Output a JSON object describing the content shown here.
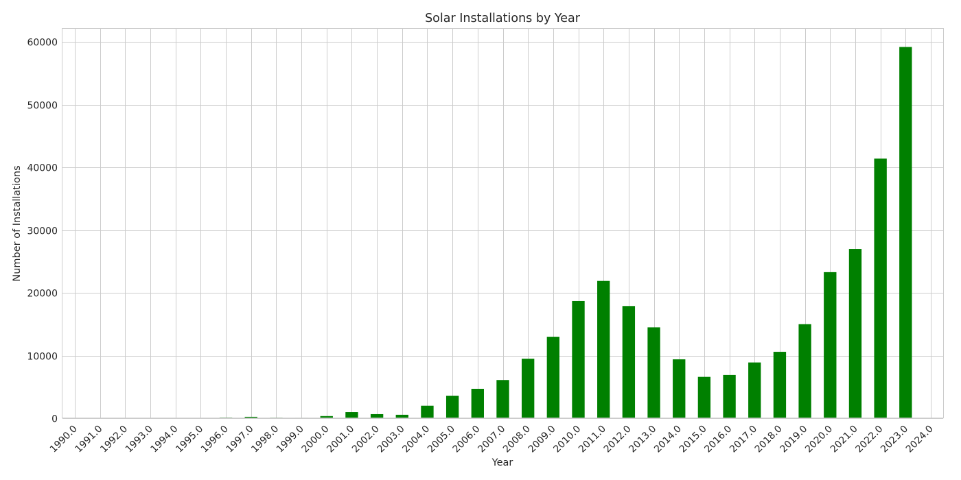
{
  "chart_data": {
    "type": "bar",
    "title": "Solar Installations by Year",
    "xlabel": "Year",
    "ylabel": "Number of Installations",
    "categories": [
      "1990.0",
      "1991.0",
      "1992.0",
      "1993.0",
      "1994.0",
      "1995.0",
      "1996.0",
      "1997.0",
      "1998.0",
      "1999.0",
      "2000.0",
      "2001.0",
      "2002.0",
      "2003.0",
      "2004.0",
      "2005.0",
      "2006.0",
      "2007.0",
      "2008.0",
      "2009.0",
      "2010.0",
      "2011.0",
      "2012.0",
      "2013.0",
      "2014.0",
      "2015.0",
      "2016.0",
      "2017.0",
      "2018.0",
      "2019.0",
      "2020.0",
      "2021.0",
      "2022.0",
      "2023.0",
      "2024.0"
    ],
    "values": [
      0,
      10,
      100,
      60,
      80,
      80,
      130,
      230,
      120,
      110,
      350,
      980,
      660,
      560,
      2000,
      3600,
      4700,
      6100,
      9500,
      13000,
      18700,
      21900,
      17900,
      14500,
      9400,
      6600,
      6900,
      8900,
      10600,
      15000,
      23300,
      27000,
      41400,
      59200,
      0
    ],
    "yticks": [
      0,
      10000,
      20000,
      30000,
      40000,
      50000,
      60000
    ],
    "ylim": [
      0,
      62100
    ],
    "grid": true,
    "color": "#008000"
  }
}
